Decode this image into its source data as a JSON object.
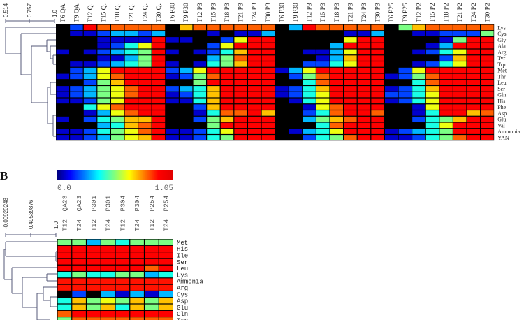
{
  "chart_data": [
    {
      "type": "heatmap",
      "panel": "A",
      "colormap": "jet",
      "value_range": [
        0.0,
        1.05
      ],
      "dendrogram_axis_labels": [
        "0.514",
        "0.757",
        "1.0"
      ],
      "columns": [
        "T6 QA",
        "T9 QA",
        "T12 Q.",
        "T15 Q.",
        "T18 Q.",
        "T21 Q.",
        "T24 Q.",
        "T30 Q.",
        "T6 P30",
        "T9 P30",
        "T12 P3",
        "T15 P3",
        "T18 P3",
        "T21 P3",
        "T24 P3",
        "T30 P3",
        "T6 P30",
        "T9 P30",
        "T12 P3",
        "T15 P3",
        "T18 P3",
        "T21 P3",
        "T24 P3",
        "T30 P3",
        "T6 P25",
        "T9 P25",
        "T12 P2",
        "T15 P2",
        "T18 P2",
        "T21 P2",
        "T24 P2",
        "T30 P2"
      ],
      "rows": [
        "Lys",
        "Cys",
        "Gly",
        "Ala",
        "Arg",
        "Tyr",
        "Trp",
        "Met",
        "Thr",
        "Leu",
        "Ser",
        "Gln",
        "His",
        "Phe",
        "Asp",
        "Glu",
        "Val",
        "Ammonia",
        "YAN"
      ],
      "values": [
        [
          0,
          0.2,
          0.92,
          0.82,
          0.82,
          0.82,
          0.82,
          0.82,
          0,
          0.72,
          0.82,
          0.82,
          0.82,
          0.82,
          0.82,
          0.82,
          0,
          0.32,
          0.92,
          0.82,
          0.82,
          0.82,
          0.82,
          0.82,
          0,
          0.52,
          0.72,
          0.82,
          0.82,
          0.82,
          0.82,
          0.82
        ],
        [
          0,
          0.08,
          0.08,
          0.2,
          0.32,
          0.32,
          0.2,
          0.32,
          0,
          0,
          0,
          0.08,
          0,
          0.08,
          0.08,
          0.32,
          0,
          0,
          0,
          0,
          0,
          0.08,
          0.08,
          0.32,
          0,
          0,
          0.08,
          0.08,
          0.2,
          0.2,
          0.2,
          0.52
        ],
        [
          0,
          0,
          0,
          0.08,
          0.08,
          0.08,
          0.08,
          0.92,
          0.08,
          0.08,
          0,
          0,
          0.2,
          0.64,
          0.92,
          0.92,
          0,
          0,
          0,
          0,
          0,
          0.64,
          0.92,
          0.92,
          0,
          0,
          0,
          0,
          0.08,
          0.52,
          0.92,
          0.92
        ],
        [
          0,
          0,
          0,
          0.08,
          0.2,
          0.42,
          0.64,
          0.92,
          0,
          0,
          0,
          0.2,
          0.64,
          0.92,
          0.92,
          0.92,
          0,
          0,
          0,
          0,
          0.32,
          0.92,
          0.92,
          0.92,
          0,
          0,
          0,
          0.08,
          0.32,
          0.92,
          0.92,
          0.92
        ],
        [
          0.08,
          0,
          0.08,
          0.2,
          0.32,
          0.42,
          0.52,
          0.92,
          0.08,
          0,
          0.08,
          0.2,
          0.42,
          0.72,
          0.92,
          0.92,
          0,
          0,
          0.08,
          0.08,
          0.32,
          0.64,
          0.92,
          0.92,
          0,
          0,
          0.08,
          0.2,
          0.42,
          0.64,
          0.92,
          0.92
        ],
        [
          0,
          0,
          0,
          0.08,
          0.08,
          0.32,
          0.52,
          0.92,
          0,
          0,
          0,
          0.32,
          0.52,
          0.82,
          0.92,
          0.92,
          0,
          0,
          0,
          0.08,
          0.32,
          0.72,
          0.92,
          0.92,
          0,
          0,
          0,
          0,
          0.2,
          0.72,
          0.92,
          0.92
        ],
        [
          0,
          0.08,
          0.08,
          0.2,
          0.32,
          0.42,
          0.52,
          0.92,
          0.08,
          0,
          0.08,
          0.42,
          0.52,
          0.72,
          0.92,
          0.92,
          0,
          0,
          0.2,
          0.2,
          0.42,
          0.64,
          0.92,
          0.92,
          0,
          0,
          0.08,
          0.2,
          0.42,
          0.64,
          0.92,
          0.92
        ],
        [
          0,
          0.2,
          0.32,
          0.64,
          0.92,
          0.92,
          0.92,
          0.92,
          0.2,
          0.32,
          0.64,
          0.92,
          0.92,
          0.92,
          0.92,
          0.92,
          0.08,
          0.32,
          0.64,
          0.92,
          0.92,
          0.92,
          0.92,
          0.92,
          0,
          0.2,
          0.64,
          0.92,
          0.92,
          0.92,
          0.92,
          0.92
        ],
        [
          0.08,
          0.2,
          0.32,
          0.64,
          0.82,
          0.92,
          0.92,
          0.92,
          0.08,
          0.2,
          0.52,
          0.82,
          0.92,
          0.92,
          0.92,
          0.92,
          0,
          0.2,
          0.52,
          0.82,
          0.92,
          0.92,
          0.92,
          0.92,
          0.08,
          0.2,
          0.52,
          0.82,
          0.92,
          0.92,
          0.92,
          0.92
        ],
        [
          0,
          0,
          0.2,
          0.52,
          0.72,
          0.92,
          0.92,
          0.92,
          0,
          0,
          0.52,
          0.92,
          0.92,
          0.92,
          0.92,
          0.92,
          0,
          0,
          0.42,
          0.82,
          0.92,
          0.92,
          0.92,
          0.92,
          0,
          0,
          0.42,
          0.82,
          0.92,
          0.92,
          0.92,
          0.92
        ],
        [
          0.08,
          0.2,
          0.32,
          0.52,
          0.64,
          0.82,
          0.92,
          0.92,
          0.2,
          0.32,
          0.42,
          0.72,
          0.92,
          0.92,
          0.92,
          0.92,
          0.08,
          0.2,
          0.42,
          0.72,
          0.92,
          0.92,
          0.92,
          0.92,
          0.08,
          0.2,
          0.42,
          0.72,
          0.92,
          0.92,
          0.92,
          0.92
        ],
        [
          0.08,
          0.2,
          0.32,
          0.52,
          0.64,
          0.82,
          0.92,
          0.92,
          0.08,
          0.2,
          0.42,
          0.72,
          0.92,
          0.92,
          0.92,
          0.92,
          0.08,
          0.2,
          0.42,
          0.64,
          0.92,
          0.92,
          0.92,
          0.92,
          0.2,
          0.2,
          0.42,
          0.64,
          0.92,
          0.92,
          0.92,
          0.92
        ],
        [
          0.08,
          0.08,
          0.2,
          0.52,
          0.64,
          0.92,
          0.92,
          0.92,
          0.08,
          0.08,
          0.42,
          0.72,
          0.92,
          0.92,
          0.92,
          0.92,
          0,
          0.08,
          0.42,
          0.64,
          0.92,
          0.92,
          0.92,
          0.92,
          0.08,
          0.2,
          0.42,
          0.64,
          0.92,
          0.92,
          0.92,
          0.92
        ],
        [
          0,
          0,
          0.42,
          0.64,
          0.82,
          0.92,
          0.92,
          0.92,
          0,
          0,
          0.2,
          0.72,
          0.92,
          0.92,
          0.92,
          0.92,
          0,
          0,
          0.08,
          0.64,
          0.82,
          0.92,
          0.92,
          0.92,
          0,
          0,
          0.08,
          0.64,
          0.92,
          0.92,
          0.92,
          0.92
        ],
        [
          0,
          0,
          0.08,
          0.32,
          0.64,
          0.82,
          0.92,
          0.92,
          0,
          0,
          0.08,
          0.42,
          0.82,
          0.82,
          0.92,
          0.72,
          0,
          0,
          0.2,
          0.42,
          0.82,
          0.92,
          0.92,
          0.82,
          0,
          0,
          0.08,
          0.42,
          0.92,
          0.92,
          0.72,
          0.82
        ],
        [
          0.08,
          0,
          0.2,
          0.42,
          0.52,
          0.72,
          0.72,
          0.92,
          0,
          0,
          0.2,
          0.52,
          0.72,
          0.92,
          0.92,
          0.92,
          0,
          0,
          0.32,
          0.52,
          0.72,
          0.82,
          0.92,
          0.92,
          0,
          0,
          0.2,
          0.42,
          0.52,
          0.72,
          0.92,
          0.92
        ],
        [
          0,
          0,
          0,
          0.32,
          0.42,
          0.72,
          0.82,
          0.92,
          0,
          0,
          0,
          0.52,
          0.92,
          0.92,
          0.92,
          0.92,
          0,
          0,
          0,
          0.42,
          0.82,
          0.92,
          0.92,
          0.92,
          0,
          0,
          0,
          0.42,
          0.64,
          0.92,
          0.92,
          0.92
        ],
        [
          0.08,
          0.08,
          0.2,
          0.42,
          0.52,
          0.64,
          0.82,
          0.92,
          0.08,
          0.08,
          0.2,
          0.42,
          0.64,
          0.92,
          0.92,
          0.92,
          0,
          0.08,
          0.32,
          0.42,
          0.64,
          0.92,
          0.92,
          0.92,
          0.08,
          0.2,
          0.32,
          0.42,
          0.52,
          0.92,
          0.92,
          0.92
        ],
        [
          0.08,
          0.08,
          0.2,
          0.32,
          0.52,
          0.64,
          0.72,
          0.92,
          0.08,
          0.08,
          0.2,
          0.42,
          0.52,
          0.92,
          0.92,
          0.92,
          0,
          0,
          0.2,
          0.42,
          0.52,
          0.82,
          0.92,
          0.92,
          0.08,
          0.08,
          0.2,
          0.42,
          0.52,
          0.82,
          0.92,
          0.92
        ]
      ]
    },
    {
      "type": "heatmap",
      "panel": "B",
      "panel_label": "B",
      "colormap": "jet",
      "value_range": [
        0.0,
        1.05
      ],
      "colorbar_labels": [
        "0.0",
        "1.05"
      ],
      "dendrogram_axis_labels": [
        "-0.00920248",
        "0.49539876",
        "1.0"
      ],
      "columns": [
        "T12  QA23",
        "T24  QA23",
        "T12  P301",
        "T24  P301",
        "T12  P304",
        "T24  P304",
        "T12  P254",
        "T24  P254"
      ],
      "rows": [
        "Met",
        "His",
        "Ile",
        "Ser",
        "Leu",
        "Lys",
        "Ammonia",
        "Arg",
        "Cys",
        "Asp",
        "Glu",
        "Gln",
        "Trp"
      ],
      "values": [
        [
          0.52,
          0.52,
          0.32,
          0.52,
          0.42,
          0.52,
          0.52,
          0.52
        ],
        [
          0.92,
          0.92,
          0.92,
          0.92,
          0.92,
          0.92,
          0.92,
          0.92
        ],
        [
          0.92,
          0.92,
          0.92,
          0.92,
          0.92,
          0.92,
          0.92,
          0.92
        ],
        [
          0.92,
          0.92,
          0.92,
          0.92,
          0.92,
          0.92,
          0.92,
          0.92
        ],
        [
          0.92,
          0.92,
          0.92,
          0.92,
          0.92,
          0.92,
          0.82,
          0.92
        ],
        [
          0.42,
          0.52,
          0.42,
          0.42,
          0.52,
          0.52,
          0.32,
          0.42
        ],
        [
          0.9,
          0.9,
          0.9,
          0.9,
          0.9,
          0.9,
          0.9,
          0.9
        ],
        [
          0.9,
          0.9,
          0.9,
          0.9,
          0.9,
          0.9,
          0.9,
          0.9
        ],
        [
          0,
          0.2,
          0,
          0.32,
          0.08,
          0.32,
          0.08,
          0.32
        ],
        [
          0.42,
          0.72,
          0.52,
          0.64,
          0.52,
          0.72,
          0.52,
          0.72
        ],
        [
          0.42,
          0.72,
          0.52,
          0.72,
          0.42,
          0.72,
          0.52,
          0.72
        ],
        [
          0.82,
          0.92,
          0.92,
          0.92,
          0.92,
          0.92,
          0.92,
          0.92
        ],
        [
          0.52,
          0.82,
          0.82,
          0.82,
          0.82,
          0.82,
          0.82,
          0.82
        ]
      ]
    }
  ]
}
